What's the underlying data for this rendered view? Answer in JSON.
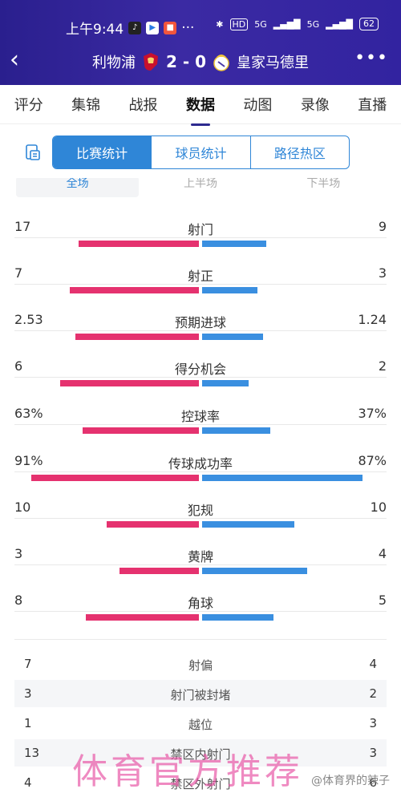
{
  "status_bar": {
    "time": "上午9:44",
    "more": "···",
    "battery": "62",
    "net1": "5G",
    "net2": "5G"
  },
  "header": {
    "home_team": "利物浦",
    "away_team": "皇家马德里",
    "score": "2 - 0",
    "more": "•••"
  },
  "tabs": [
    "评分",
    "集锦",
    "战报",
    "数据",
    "动图",
    "录像",
    "直播"
  ],
  "active_tab": "数据",
  "segments": [
    "比赛统计",
    "球员统计",
    "路径热区"
  ],
  "subtabs": [
    "全场",
    "上半场",
    "下半场"
  ],
  "stats": [
    {
      "label": "射门",
      "home": "17",
      "away": "9",
      "home_share": 0.654,
      "away_share": 0.346
    },
    {
      "label": "射正",
      "home": "7",
      "away": "3",
      "home_share": 0.7,
      "away_share": 0.3
    },
    {
      "label": "预期进球",
      "home": "2.53",
      "away": "1.24",
      "home_share": 0.671,
      "away_share": 0.329
    },
    {
      "label": "得分机会",
      "home": "6",
      "away": "2",
      "home_share": 0.75,
      "away_share": 0.25
    },
    {
      "label": "控球率",
      "home": "63%",
      "away": "37%",
      "home_share": 0.63,
      "away_share": 0.37
    },
    {
      "label": "传球成功率",
      "home": "91%",
      "away": "87%",
      "home_share": 0.91,
      "away_share": 0.87
    },
    {
      "label": "犯规",
      "home": "10",
      "away": "10",
      "home_share": 0.5,
      "away_share": 0.5
    },
    {
      "label": "黄牌",
      "home": "3",
      "away": "4",
      "home_share": 0.43,
      "away_share": 0.57
    },
    {
      "label": "角球",
      "home": "8",
      "away": "5",
      "home_share": 0.615,
      "away_share": 0.385
    }
  ],
  "other_stats": [
    {
      "label": "射偏",
      "home": "7",
      "away": "4"
    },
    {
      "label": "射门被封堵",
      "home": "3",
      "away": "2"
    },
    {
      "label": "越位",
      "home": "1",
      "away": "3"
    },
    {
      "label": "禁区内射门",
      "home": "13",
      "away": "3"
    },
    {
      "label": "禁区外射门",
      "home": "4",
      "away": "6"
    }
  ],
  "watermark": "体育官方推荐",
  "watermark_source": "@体育界的辣子",
  "colors": {
    "home_bar": "#e5326f",
    "away_bar": "#3a8fe0",
    "accent": "#2f86d7",
    "header": "#3223a0"
  }
}
